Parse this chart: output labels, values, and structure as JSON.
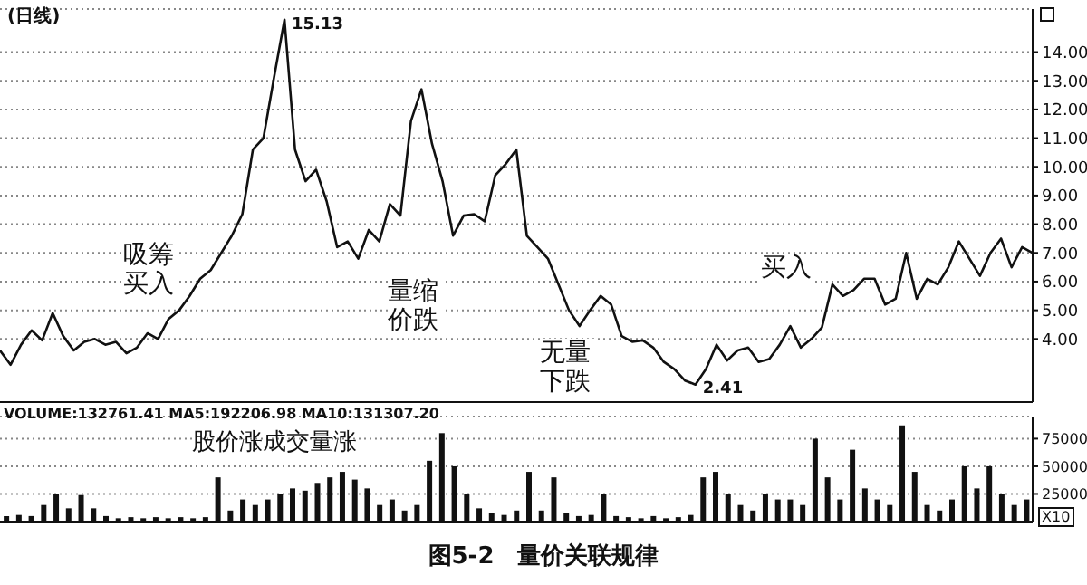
{
  "chart_data": [
    {
      "type": "line",
      "title": "(日线)",
      "categories": [
        null,
        null,
        null,
        null,
        null,
        null,
        null,
        null,
        null,
        null,
        null,
        null,
        null,
        null,
        null,
        null,
        null,
        null,
        null,
        null,
        null,
        null,
        null,
        null,
        null,
        null,
        null,
        null,
        null,
        null,
        null,
        null,
        null,
        null,
        null,
        null,
        null,
        null,
        null,
        null,
        null,
        null,
        null,
        null,
        null,
        null,
        null,
        null,
        null,
        null,
        null,
        null,
        null,
        null,
        null,
        null,
        null,
        null,
        null,
        null,
        null,
        null,
        null,
        null,
        null,
        null,
        null,
        null,
        null,
        null,
        null,
        null,
        null,
        null,
        null,
        null,
        null,
        null,
        null,
        null,
        null,
        null,
        null,
        null,
        null,
        null,
        null,
        null,
        null,
        null,
        null,
        null,
        null,
        null,
        null,
        null,
        null,
        null,
        null
      ],
      "series": [
        {
          "type": "line",
          "color": "#111111",
          "values": [
            3.6,
            3.1,
            3.8,
            4.3,
            3.95,
            4.9,
            4.1,
            3.6,
            3.9,
            4.0,
            3.8,
            3.9,
            3.5,
            3.7,
            4.2,
            4.0,
            4.7,
            5.0,
            5.5,
            6.1,
            6.4,
            7.0,
            7.6,
            8.35,
            10.6,
            11.0,
            13.1,
            15.13,
            10.6,
            9.5,
            9.9,
            8.8,
            7.2,
            7.4,
            6.8,
            7.8,
            7.4,
            8.7,
            8.3,
            11.6,
            12.7,
            10.8,
            9.5,
            7.6,
            8.3,
            8.35,
            8.1,
            9.7,
            10.1,
            10.6,
            7.6,
            7.2,
            6.8,
            5.9,
            5.0,
            4.45,
            5.0,
            5.5,
            5.2,
            4.1,
            3.9,
            3.95,
            3.7,
            3.2,
            2.95,
            2.55,
            2.41,
            2.95,
            3.8,
            3.25,
            3.6,
            3.7,
            3.2,
            3.3,
            3.8,
            4.45,
            3.7,
            4.0,
            4.4,
            5.9,
            5.5,
            5.7,
            6.1,
            6.1,
            5.2,
            5.4,
            7.0,
            5.4,
            6.1,
            5.9,
            6.5,
            7.4,
            6.8,
            6.2,
            7.0,
            7.5,
            6.5,
            7.2,
            7.0
          ]
        }
      ],
      "ylim": [
        1.8,
        15.5
      ],
      "yticks": [
        {
          "value": 4,
          "label": "4.00"
        },
        {
          "value": 5,
          "label": "5.00"
        },
        {
          "value": 6,
          "label": "6.00"
        },
        {
          "value": 7,
          "label": "7.00"
        },
        {
          "value": 8,
          "label": "8.00"
        },
        {
          "value": 9,
          "label": "9.00"
        },
        {
          "value": 10,
          "label": "10.00"
        },
        {
          "value": 11,
          "label": "11.00"
        },
        {
          "value": 12,
          "label": "12.00"
        },
        {
          "value": 13,
          "label": "13.00"
        },
        {
          "value": 14,
          "label": "14.00"
        }
      ],
      "grid": "y",
      "marker": "none",
      "line_style": "solid",
      "annotations": [
        "15.13",
        "吸筹买入",
        "量缩价跌",
        "无量下跌",
        "买入",
        "2.41"
      ]
    },
    {
      "type": "bar",
      "color": "#111111",
      "categories": [
        null,
        null,
        null,
        null,
        null,
        null,
        null,
        null,
        null,
        null,
        null,
        null,
        null,
        null,
        null,
        null,
        null,
        null,
        null,
        null,
        null,
        null,
        null,
        null,
        null,
        null,
        null,
        null,
        null,
        null,
        null,
        null,
        null,
        null,
        null,
        null,
        null,
        null,
        null,
        null,
        null,
        null,
        null,
        null,
        null,
        null,
        null,
        null,
        null,
        null,
        null,
        null,
        null,
        null,
        null,
        null,
        null,
        null,
        null,
        null,
        null,
        null,
        null,
        null,
        null,
        null,
        null,
        null,
        null,
        null,
        null,
        null,
        null,
        null,
        null,
        null,
        null,
        null,
        null,
        null,
        null,
        null,
        null
      ],
      "values": [
        5000,
        6000,
        5000,
        15000,
        25000,
        12000,
        24000,
        12000,
        5000,
        3000,
        4000,
        3000,
        4000,
        3000,
        4000,
        3000,
        4000,
        40000,
        10000,
        20000,
        15000,
        20000,
        25000,
        30000,
        28000,
        35000,
        40000,
        45000,
        38000,
        30000,
        15000,
        20000,
        10000,
        15000,
        55000,
        80000,
        50000,
        25000,
        12000,
        8000,
        6000,
        10000,
        45000,
        10000,
        40000,
        8000,
        5000,
        6000,
        25000,
        5000,
        4000,
        3000,
        5000,
        3000,
        4000,
        6000,
        40000,
        45000,
        25000,
        15000,
        10000,
        25000,
        20000,
        20000,
        15000,
        75000,
        40000,
        20000,
        65000,
        30000,
        20000,
        15000,
        87000,
        45000,
        15000,
        10000,
        20000,
        50000,
        30000,
        50000,
        25000,
        15000,
        20000
      ],
      "ylim": [
        0,
        95000
      ],
      "yticks": [
        25000,
        50000,
        75000
      ],
      "grid": "y",
      "annotations": [
        "VOLUME:132761.41 MA5:192206.98 MA10:131307.20",
        "股价涨成交量涨",
        "X10",
        "图5-2　量价关联规律"
      ]
    }
  ]
}
